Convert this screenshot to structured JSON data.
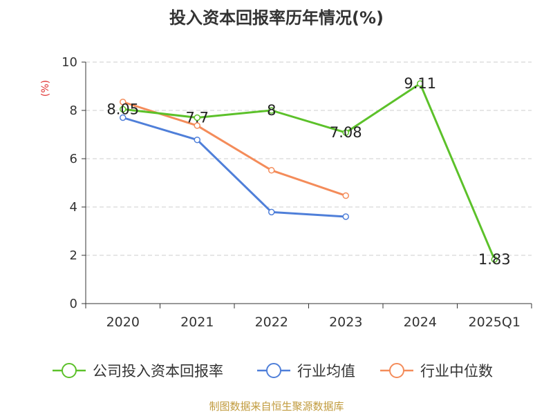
{
  "chart_data": {
    "type": "line",
    "title": "投入资本回报率历年情况(%)",
    "ylabel": "(%)",
    "xlabel": "",
    "categories": [
      "2020",
      "2021",
      "2022",
      "2023",
      "2024",
      "2025Q1"
    ],
    "ylim": [
      0,
      10
    ],
    "yticks": [
      0,
      2,
      4,
      6,
      8,
      10
    ],
    "grid": true,
    "legend_position": "bottom",
    "series": [
      {
        "name": "公司投入资本回报率",
        "color": "#5cc12a",
        "values": [
          8.05,
          7.7,
          8,
          7.08,
          9.11,
          1.83
        ],
        "labels": [
          "8.05",
          "7.7",
          "8",
          "7.08",
          "9.11",
          "1.83"
        ]
      },
      {
        "name": "行业均值",
        "color": "#4f7fd9",
        "values": [
          7.7,
          6.78,
          3.79,
          3.6,
          null,
          null
        ]
      },
      {
        "name": "行业中位数",
        "color": "#f48c5a",
        "values": [
          8.35,
          7.37,
          5.52,
          4.47,
          null,
          null
        ]
      }
    ]
  },
  "source": "制图数据来自恒生聚源数据库",
  "ylabel_color": "#e03030",
  "source_color": "#c09a3c"
}
